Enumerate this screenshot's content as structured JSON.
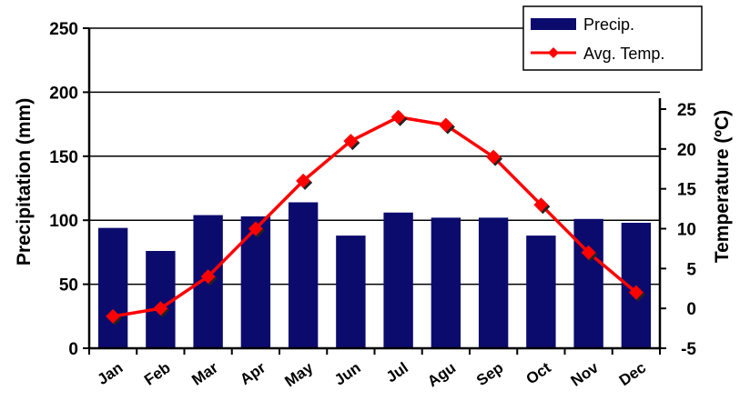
{
  "chart_data": {
    "type": "bar",
    "categories": [
      "Jan",
      "Feb",
      "Mar",
      "Apr",
      "May",
      "Jun",
      "Jul",
      "Agu",
      "Sep",
      "Oct",
      "Nov",
      "Dec"
    ],
    "series": [
      {
        "name": "Precip.",
        "type": "bar",
        "axis": "left",
        "color": "#0b0b6e",
        "values": [
          94,
          76,
          104,
          103,
          114,
          88,
          106,
          102,
          102,
          88,
          101,
          98
        ]
      },
      {
        "name": "Avg. Temp.",
        "type": "line",
        "axis": "right",
        "color": "#ff0000",
        "values": [
          -1,
          0,
          4,
          10,
          16,
          21,
          24,
          23,
          19,
          13,
          7,
          2
        ]
      }
    ],
    "ylabel": "Precipitation (mm)",
    "ylabel_right": "Temperature (ºC)",
    "ylim": [
      0,
      250
    ],
    "yticks": [
      "0",
      "50",
      "100",
      "150",
      "200",
      "250"
    ],
    "ylim_right": [
      -5,
      25
    ],
    "yticks_right": [
      "-5",
      "0",
      "5",
      "10",
      "15",
      "20",
      "25"
    ],
    "grid": true,
    "legend_position": "top-right"
  }
}
